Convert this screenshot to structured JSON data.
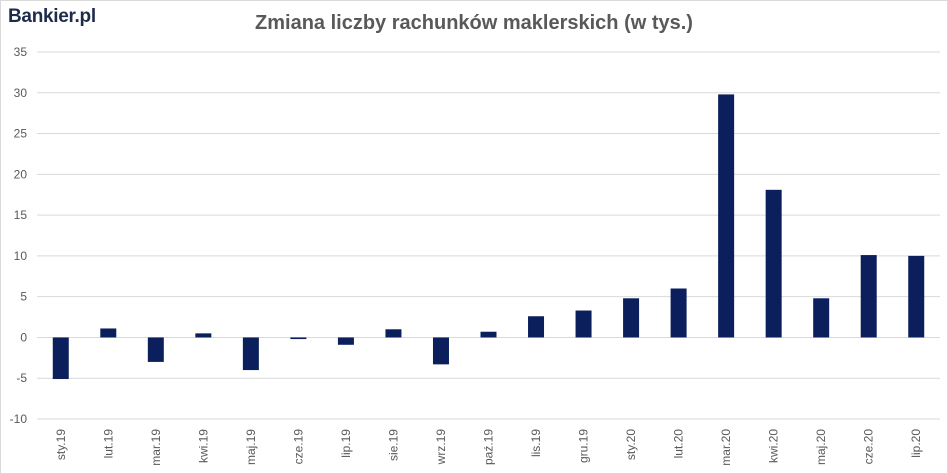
{
  "logo_text": "Bankier.pl",
  "chart_data": {
    "type": "bar",
    "title": "Zmiana liczby rachunków maklerskich (w tys.)",
    "xlabel": "",
    "ylabel": "",
    "ylim": [
      -10,
      35
    ],
    "yticks": [
      -10,
      -5,
      0,
      5,
      10,
      15,
      20,
      25,
      30,
      35
    ],
    "grid": true,
    "bar_color": "#0b1f5c",
    "categories": [
      "sty.19",
      "lut.19",
      "mar.19",
      "kwi.19",
      "maj.19",
      "cze.19",
      "lip.19",
      "sie.19",
      "wrz.19",
      "paź.19",
      "lis.19",
      "gru.19",
      "sty.20",
      "lut.20",
      "mar.20",
      "kwi.20",
      "maj.20",
      "cze.20",
      "lip.20"
    ],
    "values": [
      -5.1,
      1.1,
      -3.0,
      0.5,
      -4.0,
      -0.2,
      -0.9,
      1.0,
      -3.3,
      0.7,
      2.6,
      3.3,
      4.8,
      6.0,
      29.8,
      18.1,
      4.8,
      10.1,
      10.0
    ]
  }
}
